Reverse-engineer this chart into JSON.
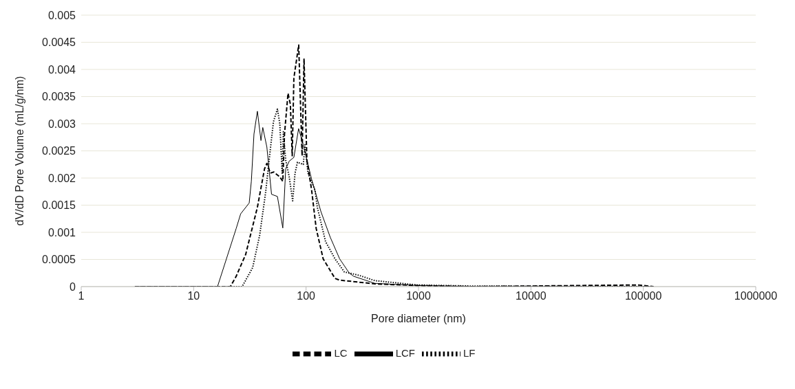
{
  "chart_data": {
    "type": "line",
    "xlabel": "Pore diameter (nm)",
    "ylabel": "dV/dD Pore Volume  (mL/g/nm)",
    "log": "x",
    "xlim": [
      1,
      1000000
    ],
    "xticks": [
      1,
      10,
      100,
      1000,
      10000,
      100000,
      1000000
    ],
    "ylim": [
      0,
      0.005
    ],
    "yticks": [
      0,
      0.0005,
      0.001,
      0.0015,
      0.002,
      0.0025,
      0.003,
      0.0035,
      0.004,
      0.0045,
      0.005
    ],
    "grid": "y",
    "legend": "bottom",
    "marker": "none",
    "series": [
      {
        "name": "LC",
        "color": "#000000",
        "line_style": "dashed",
        "x": [
          3,
          21.2,
          23.9,
          29,
          36.9,
          42.7,
          44.8,
          48.1,
          51.7,
          58.4,
          62.1,
          64.3,
          69.1,
          72.5,
          75.3,
          77.9,
          86,
          92.2,
          95.9,
          101.7,
          112,
          123,
          142,
          181,
          198,
          409,
          973,
          3000,
          90000,
          123000
        ],
        "values": [
          0,
          0,
          0.00019,
          0.00059,
          0.00146,
          0.00217,
          0.00227,
          0.00209,
          0.00211,
          0.00202,
          0.00194,
          0.00281,
          0.00356,
          0.00336,
          0.00241,
          0.00384,
          0.00445,
          0.00241,
          0.0042,
          0.00233,
          0.00178,
          0.00107,
          0.00051,
          0.00015,
          0.00012,
          5e-05,
          2e-05,
          0,
          3e-05,
          0
        ]
      },
      {
        "name": "LF",
        "color": "#000000",
        "line_style": "dotted",
        "x": [
          3,
          27,
          33.5,
          38.7,
          43.7,
          48.1,
          51.3,
          55.6,
          58.4,
          61.3,
          62.8,
          65.9,
          70.8,
          76,
          79.8,
          83.8,
          94.5,
          97.7,
          104,
          120,
          126,
          149,
          181,
          219,
          293,
          409,
          973,
          3000,
          123000
        ],
        "values": [
          0,
          0,
          0.00035,
          0.00095,
          0.00174,
          0.00253,
          0.00304,
          0.00327,
          0.003,
          0.00209,
          0.00285,
          0.00233,
          0.00202,
          0.00158,
          0.00209,
          0.00229,
          0.00225,
          0.00261,
          0.00209,
          0.00178,
          0.00146,
          0.00083,
          0.00051,
          0.00027,
          0.00021,
          0.00011,
          3e-05,
          1e-05,
          0
        ]
      },
      {
        "name": "LCF",
        "color": "#000000",
        "line_style": "solid",
        "x": [
          3,
          16.3,
          23.9,
          26.2,
          31.2,
          32.6,
          34.4,
          36.9,
          39.7,
          41.2,
          44.8,
          49.3,
          55.6,
          62.1,
          65.9,
          70.8,
          77.9,
          85.8,
          94.5,
          111.9,
          135.6,
          164,
          199,
          242,
          265,
          409,
          973,
          3000,
          123000
        ],
        "values": [
          0,
          0,
          0.00107,
          0.00134,
          0.00154,
          0.00194,
          0.00281,
          0.00323,
          0.00269,
          0.00293,
          0.00257,
          0.0017,
          0.00166,
          0.00108,
          0.00217,
          0.00231,
          0.00238,
          0.00291,
          0.00261,
          0.00198,
          0.00138,
          0.00091,
          0.00051,
          0.00025,
          0.00019,
          6e-05,
          2e-05,
          0,
          0
        ]
      }
    ]
  }
}
